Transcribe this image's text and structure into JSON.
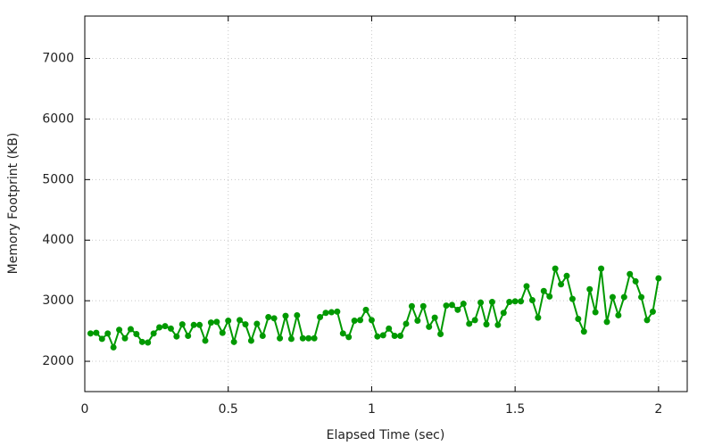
{
  "chart_data": {
    "type": "line",
    "xlabel": "Elapsed Time (sec)",
    "ylabel": "Memory Footprint (KB)",
    "x": [
      0.02,
      0.04,
      0.06,
      0.08,
      0.1,
      0.12,
      0.14,
      0.16,
      0.18,
      0.2,
      0.22,
      0.24,
      0.26,
      0.28,
      0.3,
      0.32,
      0.34,
      0.36,
      0.38,
      0.4,
      0.42,
      0.44,
      0.46,
      0.48,
      0.5,
      0.52,
      0.54,
      0.56,
      0.58,
      0.6,
      0.62,
      0.64,
      0.66,
      0.68,
      0.7,
      0.72,
      0.74,
      0.76,
      0.78,
      0.8,
      0.82,
      0.84,
      0.86,
      0.88,
      0.9,
      0.92,
      0.94,
      0.96,
      0.98,
      1,
      1.02,
      1.04,
      1.06,
      1.08,
      1.1,
      1.12,
      1.14,
      1.16,
      1.18,
      1.2,
      1.22,
      1.24,
      1.26,
      1.28,
      1.3,
      1.32,
      1.34,
      1.36,
      1.38,
      1.4,
      1.42,
      1.44,
      1.46,
      1.48,
      1.5,
      1.52,
      1.54,
      1.56,
      1.58,
      1.6,
      1.62,
      1.64,
      1.66,
      1.68,
      1.7,
      1.72,
      1.74,
      1.76,
      1.78,
      1.8,
      1.82,
      1.84,
      1.86,
      1.88,
      1.9,
      1.92,
      1.94,
      1.96,
      1.98,
      2
    ],
    "series": [
      {
        "color": "#009900",
        "values": [
          2460,
          2470,
          2370,
          2460,
          2230,
          2520,
          2380,
          2530,
          2450,
          2320,
          2310,
          2460,
          2560,
          2580,
          2540,
          2410,
          2610,
          2420,
          2600,
          2600,
          2340,
          2640,
          2650,
          2470,
          2670,
          2320,
          2680,
          2610,
          2340,
          2620,
          2420,
          2730,
          2710,
          2380,
          2750,
          2370,
          2760,
          2380,
          2380,
          2380,
          2730,
          2800,
          2810,
          2820,
          2460,
          2400,
          2670,
          2680,
          2850,
          2680,
          2410,
          2430,
          2540,
          2420,
          2420,
          2620,
          2910,
          2670,
          2910,
          2570,
          2720,
          2450,
          2920,
          2930,
          2850,
          2950,
          2620,
          2680,
          2970,
          2610,
          2980,
          2600,
          2800,
          2980,
          2990,
          2990,
          3240,
          3010,
          2720,
          3160,
          3070,
          3530,
          3270,
          3410,
          3030,
          2700,
          2490,
          3190,
          2810,
          3530,
          2650,
          3060,
          2760,
          3060,
          3440,
          3320,
          3060,
          2680,
          2820,
          3370
        ]
      }
    ],
    "xlim": [
      0,
      2.1
    ],
    "ylim": [
      1500,
      7700
    ],
    "xticks": [
      0,
      0.5,
      1,
      1.5,
      2
    ],
    "yticks": [
      2000,
      3000,
      4000,
      5000,
      6000,
      7000
    ],
    "grid": true
  }
}
